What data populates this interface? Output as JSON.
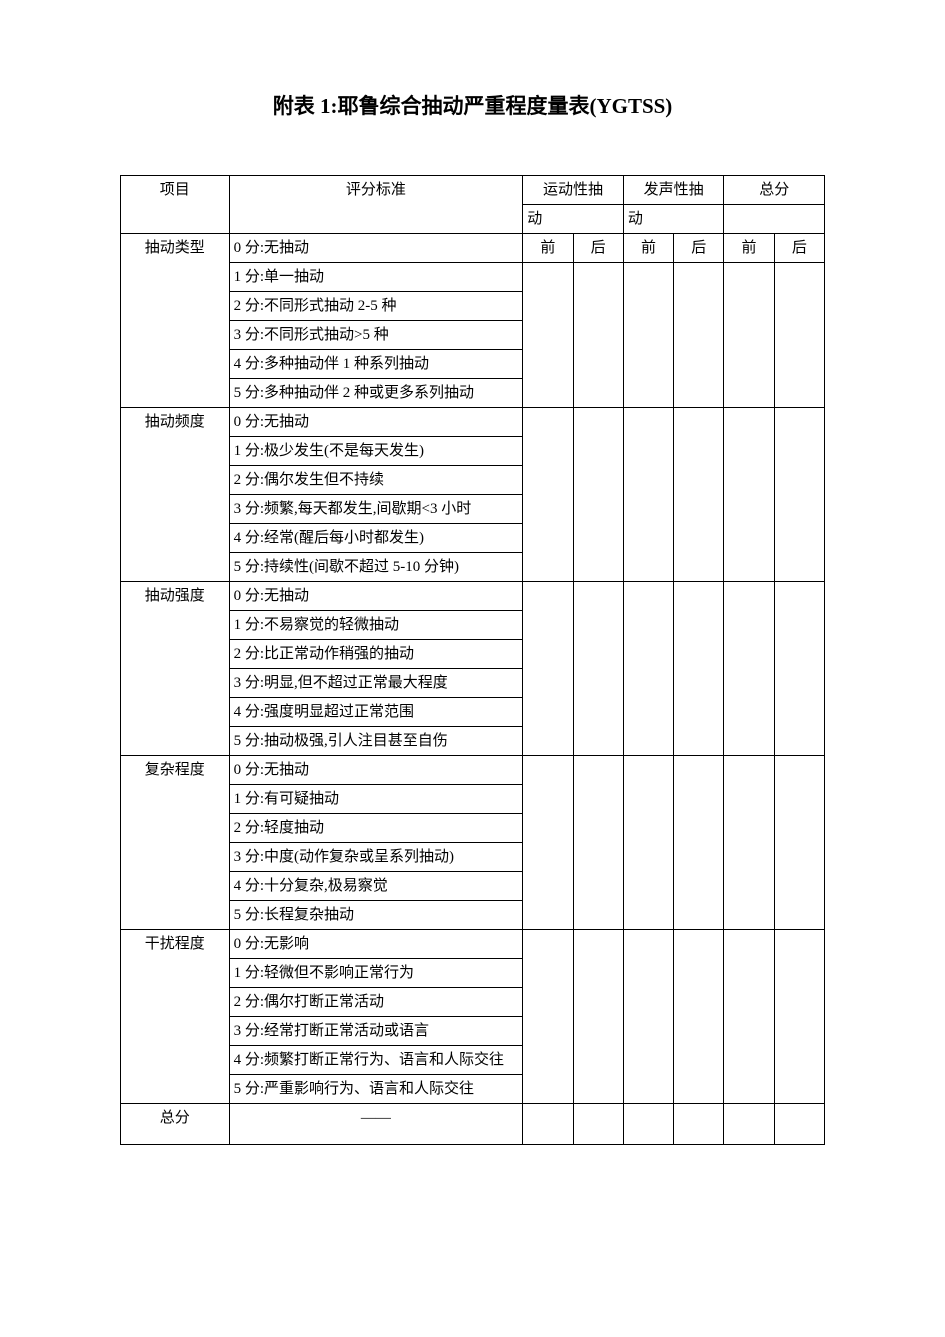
{
  "title": "附表 1:耶鲁综合抽动严重程度量表(YGTSS)",
  "columns": {
    "item": "项目",
    "criteria": "评分标准",
    "motor": "运动性抽",
    "vocal": "发声性抽",
    "total": "总分",
    "dong": "动",
    "pre": "前",
    "post": "后"
  },
  "sections": [
    {
      "name": "抽动类型",
      "rows": [
        "0 分:无抽动",
        "1 分:单一抽动",
        "2 分:不同形式抽动 2-5 种",
        "3 分:不同形式抽动>5 种",
        "4 分:多种抽动伴 1 种系列抽动",
        "5 分:多种抽动伴 2 种或更多系列抽动"
      ]
    },
    {
      "name": "抽动频度",
      "rows": [
        "0 分:无抽动",
        "1 分:极少发生(不是每天发生)",
        "2 分:偶尔发生但不持续",
        "3 分:频繁,每天都发生,间歇期<3 小时",
        "4 分:经常(醒后每小时都发生)",
        "5 分:持续性(间歇不超过 5-10 分钟)"
      ]
    },
    {
      "name": "抽动强度",
      "rows": [
        "0 分:无抽动",
        "1 分:不易察觉的轻微抽动",
        "2 分:比正常动作稍强的抽动",
        "3 分:明显,但不超过正常最大程度",
        "4 分:强度明显超过正常范围",
        "5 分:抽动极强,引人注目甚至自伤"
      ]
    },
    {
      "name": "复杂程度",
      "rows": [
        "0 分:无抽动",
        "1 分:有可疑抽动",
        "2 分:轻度抽动",
        "3 分:中度(动作复杂或呈系列抽动)",
        "4 分:十分复杂,极易察觉",
        "5 分:长程复杂抽动"
      ]
    },
    {
      "name": "干扰程度",
      "rows": [
        "0 分:无影响",
        "1 分:轻微但不影响正常行为",
        "2 分:偶尔打断正常活动",
        "3 分:经常打断正常活动或语言",
        "4 分:频繁打断正常行为、语言和人际交往",
        "5 分:严重影响行为、语言和人际交往"
      ]
    }
  ],
  "totalRow": {
    "label": "总分",
    "dash": "——"
  }
}
